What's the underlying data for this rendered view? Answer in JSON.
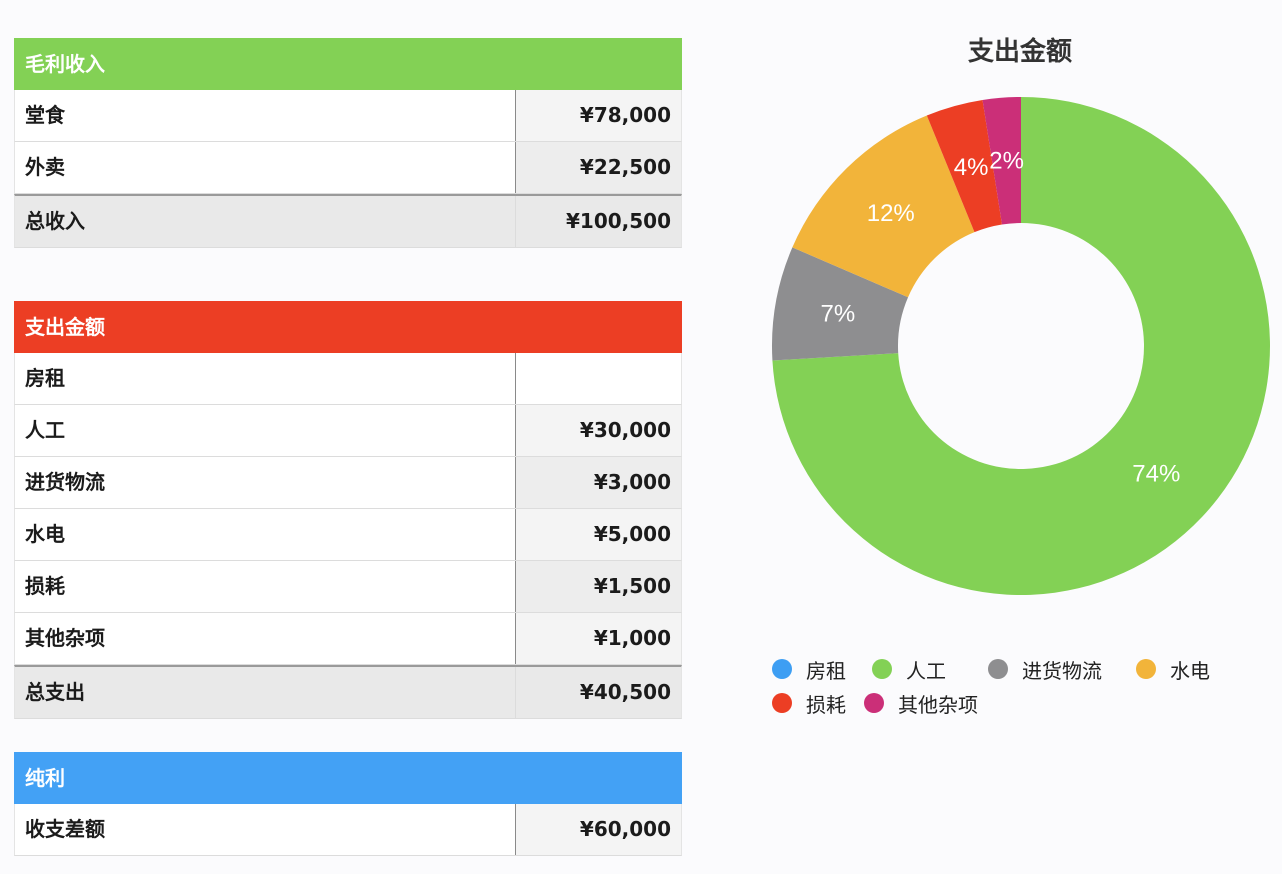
{
  "income": {
    "header": "毛利收入",
    "color": "#83d155",
    "rows": [
      {
        "label": "堂食",
        "value": "¥78,000"
      },
      {
        "label": "外卖",
        "value": "¥22,500"
      }
    ],
    "total": {
      "label": "总收入",
      "value": "¥100,500"
    }
  },
  "expense": {
    "header": "支出金额",
    "color": "#ec3e24",
    "rows": [
      {
        "label": "房租",
        "value": ""
      },
      {
        "label": "人工",
        "value": "¥30,000"
      },
      {
        "label": "进货物流",
        "value": "¥3,000"
      },
      {
        "label": "水电",
        "value": "¥5,000"
      },
      {
        "label": "损耗",
        "value": "¥1,500"
      },
      {
        "label": "其他杂项",
        "value": "¥1,000"
      }
    ],
    "total": {
      "label": "总支出",
      "value": "¥40,500"
    }
  },
  "profit": {
    "header": "纯利",
    "color": "#43a1f5",
    "rows": [
      {
        "label": "收支差额",
        "value": "¥60,000"
      }
    ]
  },
  "chart_data": {
    "type": "pie",
    "title": "支出金额",
    "donut": true,
    "legend_position": "bottom",
    "categories": [
      "房租",
      "人工",
      "进货物流",
      "水电",
      "损耗",
      "其他杂项"
    ],
    "values": [
      0,
      30000,
      3000,
      5000,
      1500,
      1000
    ],
    "labels": [
      "",
      "74%",
      "7%",
      "12%",
      "4%",
      "2%"
    ],
    "colors": [
      "#3d9ef3",
      "#83d155",
      "#8e8e90",
      "#f2b43a",
      "#ec3e24",
      "#cb2f78"
    ]
  }
}
